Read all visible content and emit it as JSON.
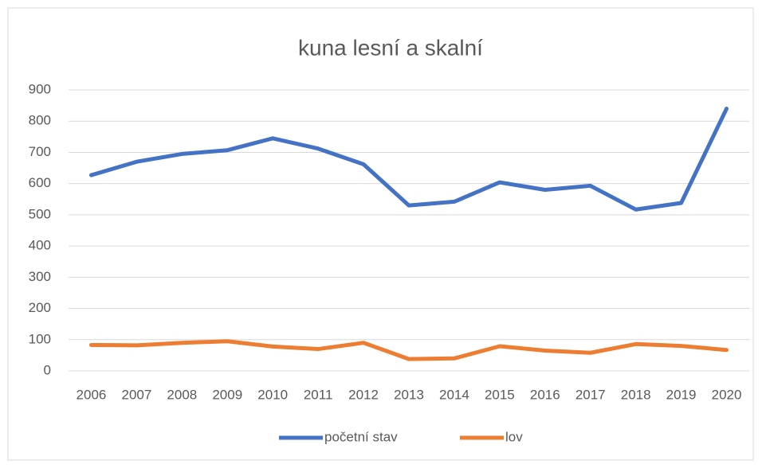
{
  "chart_data": {
    "type": "line",
    "title": "kuna lesní a skalní",
    "categories": [
      "2006",
      "2007",
      "2008",
      "2009",
      "2010",
      "2011",
      "2012",
      "2013",
      "2014",
      "2015",
      "2016",
      "2017",
      "2018",
      "2019",
      "2020"
    ],
    "series": [
      {
        "name": "početní stav",
        "color": "#4472c4",
        "values": [
          627,
          670,
          695,
          707,
          745,
          712,
          662,
          530,
          542,
          604,
          580,
          593,
          517,
          538,
          840
        ]
      },
      {
        "name": "lov",
        "color": "#ed7d31",
        "values": [
          83,
          82,
          90,
          95,
          78,
          70,
          90,
          38,
          40,
          79,
          65,
          58,
          86,
          80,
          67
        ]
      }
    ],
    "ylim": [
      0,
      900
    ],
    "yticks": [
      0,
      100,
      200,
      300,
      400,
      500,
      600,
      700,
      800,
      900
    ],
    "grid": true,
    "legend": "bottom"
  }
}
